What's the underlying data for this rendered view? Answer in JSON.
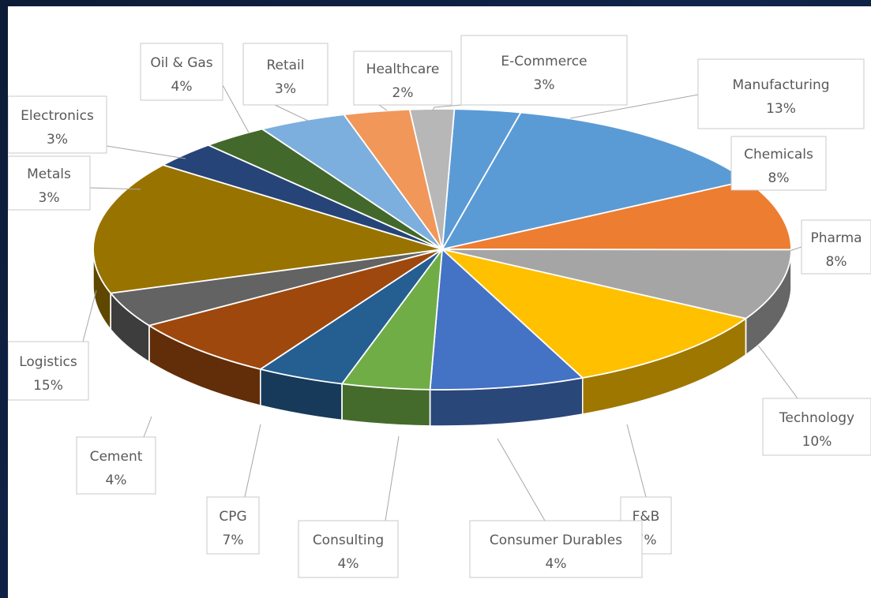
{
  "chart_data": {
    "type": "pie",
    "style": "3d-exploded-none",
    "title": "",
    "legend": "none",
    "slices": [
      {
        "name": "E-Commerce",
        "label": "3%",
        "value": 3,
        "color": "#5B9BD5"
      },
      {
        "name": "Manufacturing",
        "label": "13%",
        "value": 13,
        "color": "#5B9BD5"
      },
      {
        "name": "Chemicals",
        "label": "8%",
        "value": 8,
        "color": "#ED7D31"
      },
      {
        "name": "Pharma",
        "label": "8%",
        "value": 8,
        "color": "#A5A5A5"
      },
      {
        "name": "Technology",
        "label": "10%",
        "value": 10,
        "color": "#FFC000"
      },
      {
        "name": "F&B",
        "label": "7%",
        "value": 7,
        "color": "#4472C4"
      },
      {
        "name": "Consumer Durables",
        "label": "4%",
        "value": 4,
        "color": "#70AD47"
      },
      {
        "name": "Consulting",
        "label": "4%",
        "value": 4,
        "color": "#255E91"
      },
      {
        "name": "CPG",
        "label": "7%",
        "value": 7,
        "color": "#9E480E"
      },
      {
        "name": "Cement",
        "label": "4%",
        "value": 4,
        "color": "#636363"
      },
      {
        "name": "Logistics",
        "label": "15%",
        "value": 15,
        "color": "#997300"
      },
      {
        "name": "Metals",
        "label": "3%",
        "value": 3,
        "color": "#264478"
      },
      {
        "name": "Electronics",
        "label": "3%",
        "value": 3,
        "color": "#43682B"
      },
      {
        "name": "Oil & Gas",
        "label": "4%",
        "value": 4,
        "color": "#7CAFDD"
      },
      {
        "name": "Retail",
        "label": "3%",
        "value": 3,
        "color": "#F1975A"
      },
      {
        "name": "Healthcare",
        "label": "2%",
        "value": 2,
        "color": "#B7B7B7"
      }
    ]
  }
}
